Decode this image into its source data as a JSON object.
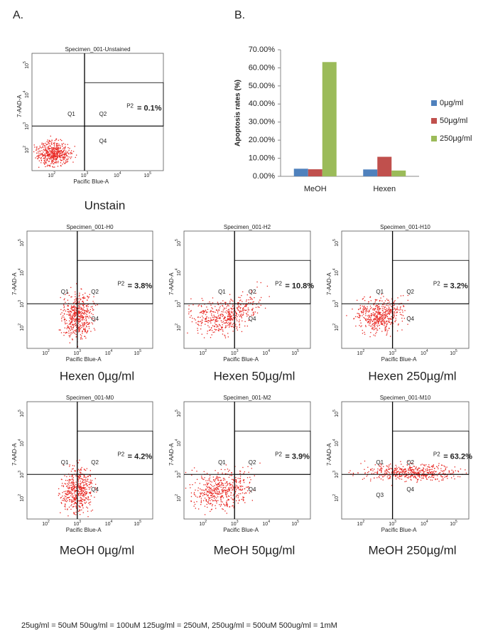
{
  "panel_a_label": "A.",
  "panel_b_label": "B.",
  "flow_axis_ticks": [
    "10",
    "10",
    "10",
    "10"
  ],
  "flow_axis_exps": [
    "2",
    "3",
    "4",
    "5"
  ],
  "flow_plots": [
    {
      "specimen": "Specimen_001-Unstained",
      "y_label": "7-AAD-A",
      "x_label": "Pacific Blue-A",
      "gate": "P2",
      "percent": "= 0.1%",
      "quadrants": [
        "Q1",
        "Q2",
        "Q4"
      ],
      "caption": "Unstain"
    },
    {
      "specimen": "Specimen_001-H0",
      "y_label": "7-AAD-A",
      "x_label": "Pacific Blue-A",
      "gate": "P2",
      "percent": "= 3.8%",
      "quadrants": [
        "Q1",
        "Q2",
        "Q4"
      ],
      "caption": "Hexen 0µg/ml"
    },
    {
      "specimen": "Specimen_001-H2",
      "y_label": "7-AAD-A",
      "x_label": "Pacific Blue-A",
      "gate": "P2",
      "percent": "= 10.8%",
      "quadrants": [
        "Q1",
        "Q2",
        "Q4"
      ],
      "caption": "Hexen 50µg/ml"
    },
    {
      "specimen": "Specimen_001-H10",
      "y_label": "7-AAD-A",
      "x_label": "Pacific Blue-A",
      "gate": "P2",
      "percent": "= 3.2%",
      "quadrants": [
        "Q1",
        "Q2",
        "Q4"
      ],
      "caption": "Hexen 250µg/ml"
    },
    {
      "specimen": "Specimen_001-M0",
      "y_label": "7-AAD-A",
      "x_label": "Pacific Blue-A",
      "gate": "P2",
      "percent": "= 4.2%",
      "quadrants": [
        "Q1",
        "Q2",
        "Q4"
      ],
      "caption": "MeOH 0µg/ml"
    },
    {
      "specimen": "Specimen_001-M2",
      "y_label": "7-AAD-A",
      "x_label": "Pacific Blue-A",
      "gate": "P2",
      "percent": "= 3.9%",
      "quadrants": [
        "Q1",
        "Q2",
        "Q4"
      ],
      "caption": "MeOH 50µg/ml"
    },
    {
      "specimen": "Specimen_001-M10",
      "y_label": "7-AAD-A",
      "x_label": "Pacific Blue-A",
      "gate": "P2",
      "percent": "= 63.2%",
      "quadrants": [
        "Q1",
        "Q2",
        "Q3",
        "Q4"
      ],
      "caption": "MeOH 250µg/ml"
    }
  ],
  "chart_data": {
    "type": "bar",
    "y_label": "Apoptosis rates (%)",
    "categories": [
      "MeOH",
      "Hexen"
    ],
    "series": [
      {
        "name": "0μg/ml",
        "color": "#4f81bd",
        "values": [
          4.2,
          3.8
        ]
      },
      {
        "name": "50μg/ml",
        "color": "#c0504d",
        "values": [
          3.9,
          10.8
        ]
      },
      {
        "name": "250μg/ml",
        "color": "#9bbb59",
        "values": [
          63.2,
          3.2
        ]
      }
    ],
    "ylim": [
      0,
      70
    ],
    "yticks": [
      {
        "value": 0,
        "label": "0.00%"
      },
      {
        "value": 10,
        "label": "10.00%"
      },
      {
        "value": 20,
        "label": "20.00%"
      },
      {
        "value": 30,
        "label": "30.00%"
      },
      {
        "value": 40,
        "label": "40.00%"
      },
      {
        "value": 50,
        "label": "50.00%"
      },
      {
        "value": 60,
        "label": "60.00%"
      },
      {
        "value": 70,
        "label": "70.00%"
      }
    ]
  },
  "footnote": "25ug/ml = 50uM 50ug/ml = 100uM 125ug/ml = 250uM, 250ug/ml = 500uM 500ug/ml = 1mM"
}
